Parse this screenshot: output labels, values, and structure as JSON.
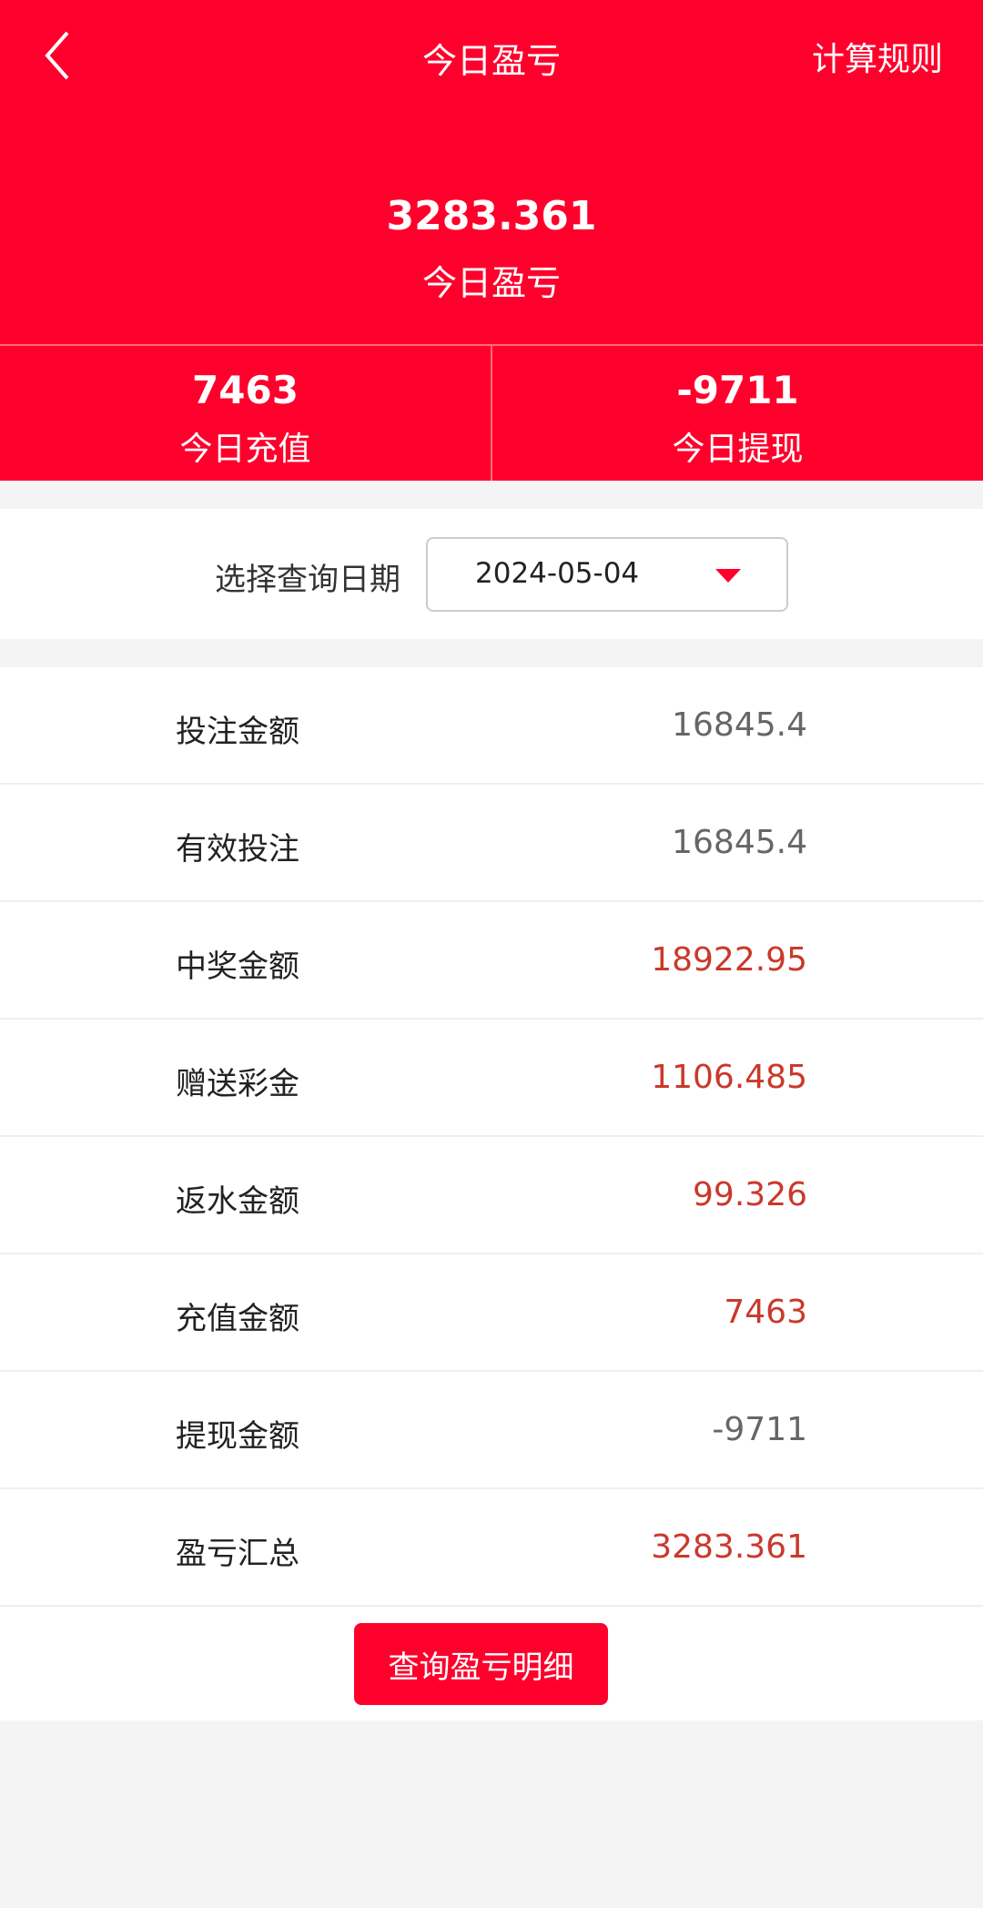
{
  "nav": {
    "title": "今日盈亏",
    "rules_label": "计算规则",
    "back_icon": "chevron-left-icon"
  },
  "summary": {
    "value": "3283.361",
    "label": "今日盈亏"
  },
  "stats": [
    {
      "value": "7463",
      "label": "今日充值"
    },
    {
      "value": "-9711",
      "label": "今日提现"
    }
  ],
  "date_filter": {
    "label": "选择查询日期",
    "value": "2024-05-04",
    "icon": "caret-down-icon"
  },
  "rows": [
    {
      "label": "投注金额",
      "value": "16845.4",
      "highlight": false
    },
    {
      "label": "有效投注",
      "value": "16845.4",
      "highlight": false
    },
    {
      "label": "中奖金额",
      "value": "18922.95",
      "highlight": true
    },
    {
      "label": "赠送彩金",
      "value": "1106.485",
      "highlight": true
    },
    {
      "label": "返水金额",
      "value": "99.326",
      "highlight": true
    },
    {
      "label": "充值金额",
      "value": "7463",
      "highlight": true
    },
    {
      "label": "提现金额",
      "value": "-9711",
      "highlight": false
    },
    {
      "label": "盈亏汇总",
      "value": "3283.361",
      "highlight": true
    }
  ],
  "detail_button": "查询盈亏明细",
  "colors": {
    "brand": "#ff002c",
    "value_red": "#c9392b",
    "value_gray": "#666666",
    "background": "#f4f4f4"
  }
}
